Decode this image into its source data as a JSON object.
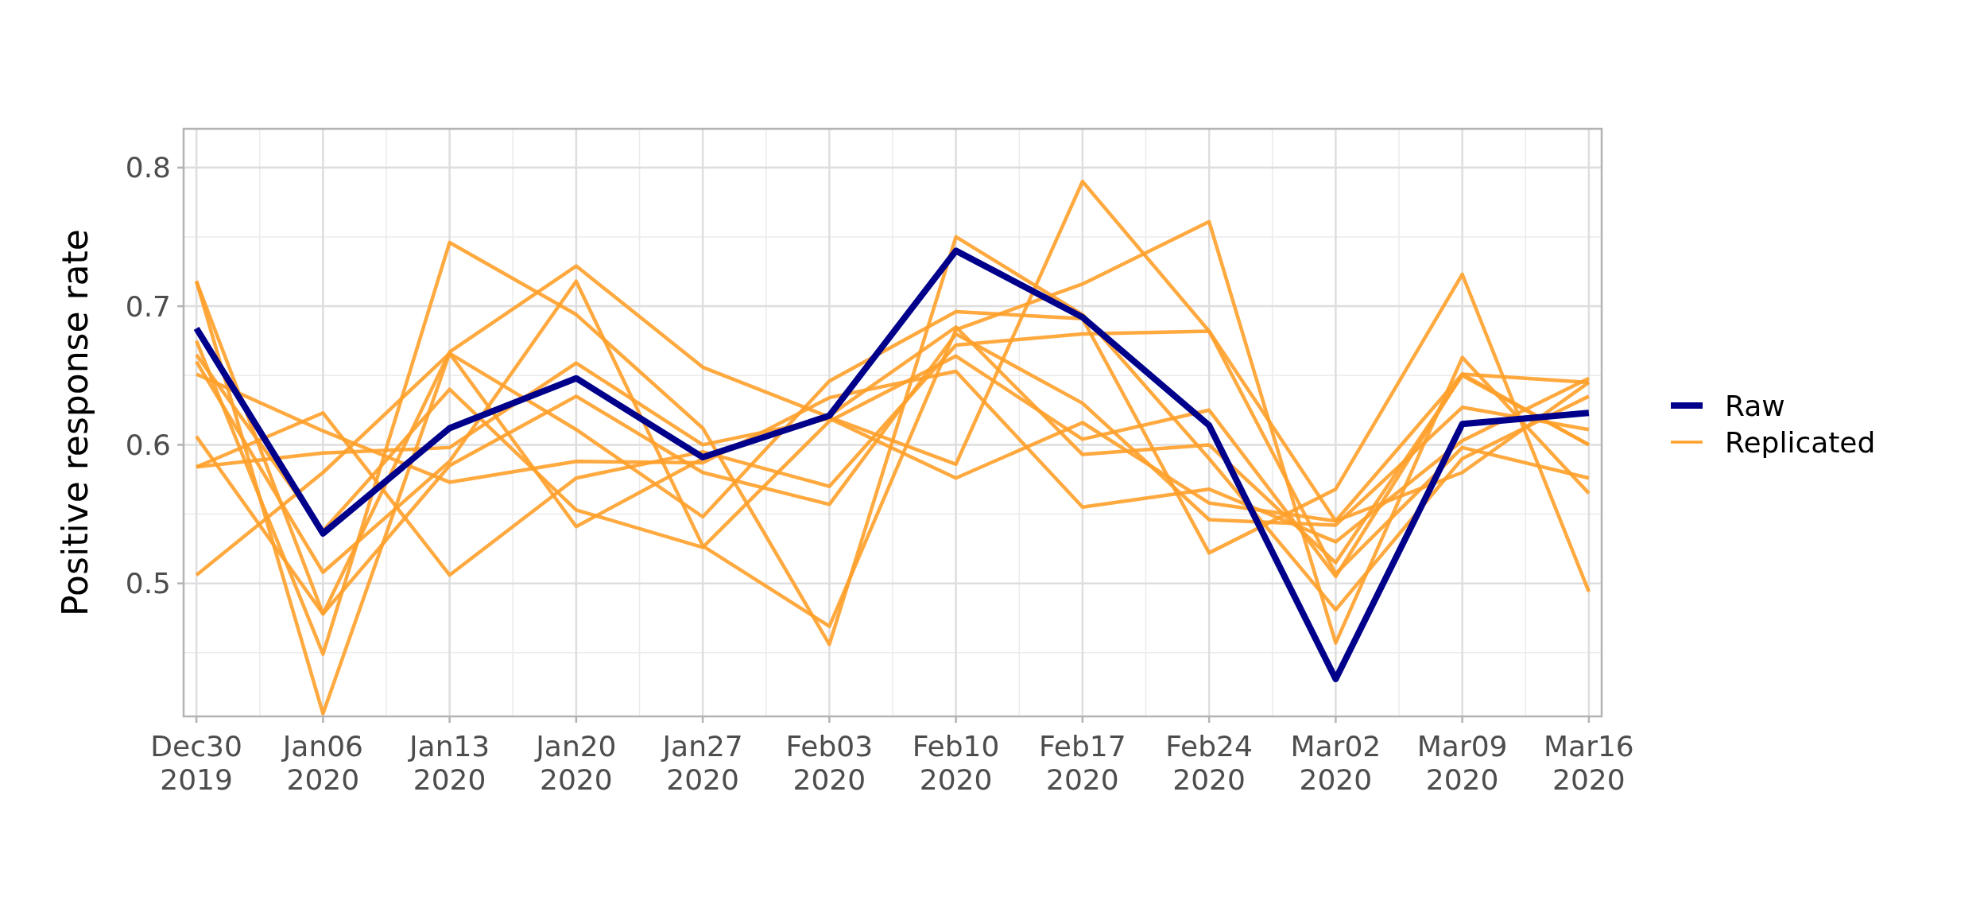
{
  "chart_data": {
    "type": "line",
    "ylabel": "Positive response rate",
    "x": [
      "2019-12-30",
      "2020-01-06",
      "2020-01-13",
      "2020-01-20",
      "2020-01-27",
      "2020-02-03",
      "2020-02-10",
      "2020-02-17",
      "2020-02-24",
      "2020-03-02",
      "2020-03-09",
      "2020-03-16"
    ],
    "xlim": [
      "2019-12-29T07:00",
      "2020-03-16T17:00"
    ],
    "xticks": [
      {
        "value": "2019-12-30",
        "label": "Dec30\n2019"
      },
      {
        "value": "2020-01-06",
        "label": "Jan06\n2020"
      },
      {
        "value": "2020-01-13",
        "label": "Jan13\n2020"
      },
      {
        "value": "2020-01-20",
        "label": "Jan20\n2020"
      },
      {
        "value": "2020-01-27",
        "label": "Jan27\n2020"
      },
      {
        "value": "2020-02-03",
        "label": "Feb03\n2020"
      },
      {
        "value": "2020-02-10",
        "label": "Feb10\n2020"
      },
      {
        "value": "2020-02-17",
        "label": "Feb17\n2020"
      },
      {
        "value": "2020-02-24",
        "label": "Feb24\n2020"
      },
      {
        "value": "2020-03-02",
        "label": "Mar02\n2020"
      },
      {
        "value": "2020-03-09",
        "label": "Mar09\n2020"
      },
      {
        "value": "2020-03-16",
        "label": "Mar16\n2020"
      }
    ],
    "ylim": [
      0.404,
      0.828
    ],
    "yticks": [
      0.5,
      0.6,
      0.7,
      0.8
    ],
    "grid": true,
    "legend": "right",
    "series": [
      {
        "name": "Raw",
        "color": "#00008b",
        "values": [
          0.684,
          0.536,
          0.612,
          0.648,
          0.591,
          0.621,
          0.74,
          0.692,
          0.614,
          0.431,
          0.615,
          0.623
        ]
      },
      {
        "name": "Replicated",
        "color": "#ffa02a",
        "values": [
          0.718,
          0.478,
          0.667,
          0.729,
          0.656,
          0.62,
          0.586,
          0.79,
          0.682,
          0.545,
          0.651,
          0.645
        ]
      },
      {
        "color": "#ffa02a",
        "values": [
          0.718,
          0.406,
          0.666,
          0.611,
          0.548,
          0.646,
          0.696,
          0.691,
          0.522,
          0.568,
          0.723,
          0.494
        ]
      },
      {
        "color": "#ffa02a",
        "values": [
          0.675,
          0.449,
          0.746,
          0.694,
          0.612,
          0.456,
          0.75,
          0.694,
          0.59,
          0.481,
          0.59,
          0.635
        ]
      },
      {
        "color": "#ffa02a",
        "values": [
          0.665,
          0.538,
          0.64,
          0.553,
          0.526,
          0.617,
          0.664,
          0.604,
          0.625,
          0.505,
          0.651,
          0.6
        ]
      },
      {
        "color": "#ffa02a",
        "values": [
          0.66,
          0.508,
          0.588,
          0.718,
          0.527,
          0.469,
          0.683,
          0.716,
          0.761,
          0.457,
          0.663,
          0.565
        ]
      },
      {
        "color": "#ffa02a",
        "values": [
          0.651,
          0.61,
          0.573,
          0.588,
          0.587,
          0.634,
          0.653,
          0.555,
          0.568,
          0.53,
          0.603,
          0.648
        ]
      },
      {
        "color": "#ffa02a",
        "values": [
          0.606,
          0.478,
          0.585,
          0.635,
          0.58,
          0.557,
          0.68,
          0.63,
          0.546,
          0.542,
          0.627,
          0.611
        ]
      },
      {
        "color": "#ffa02a",
        "values": [
          0.584,
          0.623,
          0.506,
          0.576,
          0.595,
          0.57,
          0.672,
          0.68,
          0.682,
          0.507,
          0.598,
          0.576
        ]
      },
      {
        "color": "#ffa02a",
        "values": [
          0.584,
          0.594,
          0.598,
          0.659,
          0.6,
          0.619,
          0.576,
          0.616,
          0.558,
          0.545,
          0.58,
          0.645
        ]
      },
      {
        "color": "#ffa02a",
        "values": [
          0.506,
          0.58,
          0.666,
          0.541,
          0.59,
          0.621,
          0.685,
          0.593,
          0.6,
          0.515,
          0.65,
          0.6
        ]
      }
    ]
  }
}
